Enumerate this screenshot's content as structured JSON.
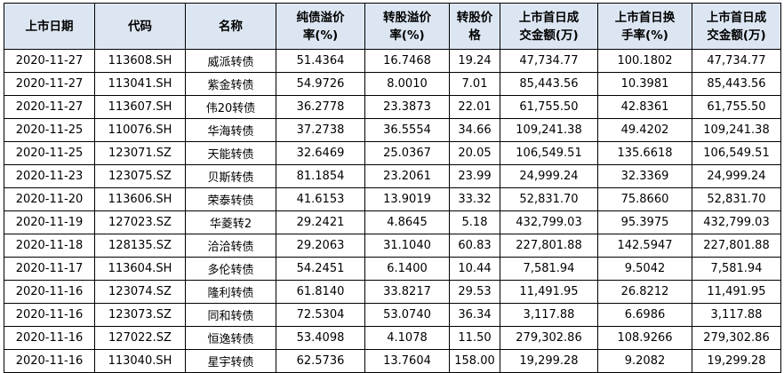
{
  "headers": [
    [
      "上市日期",
      ""
    ],
    [
      "代码",
      ""
    ],
    [
      "名称",
      ""
    ],
    [
      "纯债溢价",
      "率(%)"
    ],
    [
      "转股溢价",
      "率(%)"
    ],
    [
      "转股价",
      "格"
    ],
    [
      "上市首日成",
      "交金额(万)"
    ],
    [
      "上市首日换",
      "手率(%)"
    ],
    [
      "上市首日成",
      "交金额(万)"
    ]
  ],
  "rows": [
    [
      "2020-11-27",
      "113608.SH",
      "威派转债",
      "51.4364",
      "16.7468",
      "19.24",
      "47,734.77",
      "100.1802",
      "47,734.77"
    ],
    [
      "2020-11-27",
      "113041.SH",
      "紫金转债",
      "54.9726",
      "8.0010",
      "7.01",
      "85,443.56",
      "10.3981",
      "85,443.56"
    ],
    [
      "2020-11-27",
      "113607.SH",
      "伟20转债",
      "36.2778",
      "23.3873",
      "22.01",
      "61,755.50",
      "42.8361",
      "61,755.50"
    ],
    [
      "2020-11-25",
      "110076.SH",
      "华海转债",
      "37.2738",
      "36.5554",
      "34.66",
      "109,241.38",
      "49.4202",
      "109,241.38"
    ],
    [
      "2020-11-25",
      "123071.SZ",
      "天能转债",
      "32.6469",
      "25.0367",
      "20.05",
      "106,549.51",
      "135.6618",
      "106,549.51"
    ],
    [
      "2020-11-23",
      "123075.SZ",
      "贝斯转债",
      "81.1854",
      "23.2061",
      "23.99",
      "24,999.24",
      "32.3369",
      "24,999.24"
    ],
    [
      "2020-11-20",
      "113606.SH",
      "荣泰转债",
      "41.6153",
      "13.9019",
      "33.32",
      "52,831.70",
      "75.8660",
      "52,831.70"
    ],
    [
      "2020-11-19",
      "127023.SZ",
      "华菱转2",
      "29.2421",
      "4.8645",
      "5.18",
      "432,799.03",
      "95.3975",
      "432,799.03"
    ],
    [
      "2020-11-18",
      "128135.SZ",
      "洽洽转债",
      "29.2063",
      "31.1040",
      "60.83",
      "227,801.88",
      "142.5947",
      "227,801.88"
    ],
    [
      "2020-11-17",
      "113604.SH",
      "多伦转债",
      "54.2451",
      "6.1400",
      "10.44",
      "7,581.94",
      "9.5042",
      "7,581.94"
    ],
    [
      "2020-11-16",
      "123074.SZ",
      "隆利转债",
      "61.8140",
      "33.8217",
      "29.53",
      "11,491.95",
      "26.8212",
      "11,491.95"
    ],
    [
      "2020-11-16",
      "123073.SZ",
      "同和转债",
      "72.5304",
      "53.0740",
      "36.34",
      "3,117.88",
      "6.6986",
      "3,117.88"
    ],
    [
      "2020-11-16",
      "127022.SZ",
      "恒逸转债",
      "53.4098",
      "4.1078",
      "11.50",
      "279,302.86",
      "108.9266",
      "279,302.86"
    ],
    [
      "2020-11-16",
      "113040.SH",
      "星宇转债",
      "62.5736",
      "13.7604",
      "158.00",
      "19,299.28",
      "9.2082",
      "19,299.28"
    ]
  ]
}
